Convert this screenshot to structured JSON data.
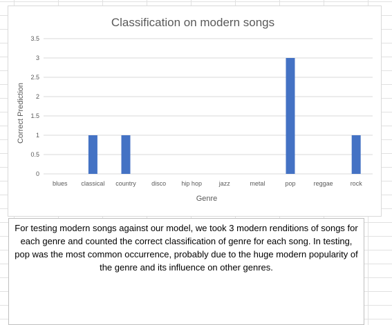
{
  "chart_data": {
    "type": "bar",
    "title": "Classification on modern songs",
    "xlabel": "Genre",
    "ylabel": "Correct Prediction",
    "categories": [
      "blues",
      "classical",
      "country",
      "disco",
      "hip hop",
      "jazz",
      "metal",
      "pop",
      "reggae",
      "rock"
    ],
    "values": [
      0,
      1,
      1,
      0,
      0,
      0,
      0,
      3,
      0,
      1
    ],
    "ylim": [
      0,
      3.5
    ],
    "yticks": [
      "0",
      "0.5",
      "1",
      "1.5",
      "2",
      "2.5",
      "3",
      "3.5"
    ],
    "grid": true,
    "legend": "none",
    "bar_color": "#4472c4"
  },
  "caption": "For testing modern songs against our model, we took 3 modern renditions of songs for each genre and counted the correct classification of genre for each song. In testing, pop was the most common occurrence, probably due to the huge modern popularity of the genre and its influence on other genres."
}
